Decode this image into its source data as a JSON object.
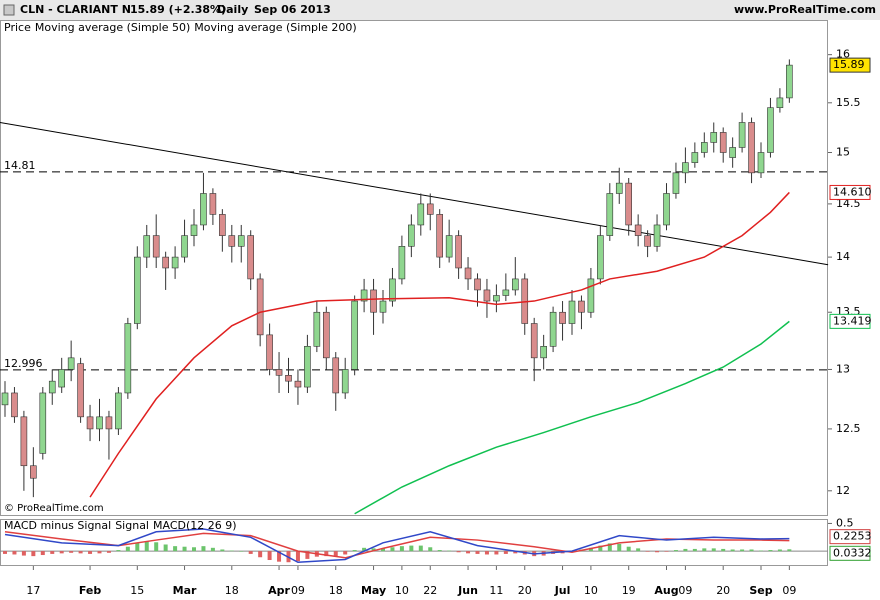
{
  "header": {
    "symbol": "CLN - CLARIANT N",
    "change": "15.89 (+2.38%)",
    "period": "Daily",
    "date": "Sep 06 2013",
    "site": "www.ProRealTime.com",
    "copyright": "© ProRealTime.com"
  },
  "chart_data": [
    {
      "type": "candlestick",
      "legend_label": "Price",
      "log": true,
      "ylim": [
        11.81,
        16.37
      ],
      "yticks": [
        12,
        12.5,
        13,
        13.5,
        14,
        14.5,
        15,
        15.5,
        16
      ],
      "up_color": "#8fd68f",
      "down_color": "#d98c8c",
      "categories": [
        null,
        null,
        null,
        "17",
        null,
        null,
        null,
        null,
        null,
        "Feb",
        null,
        null,
        null,
        null,
        "15",
        null,
        null,
        null,
        null,
        "Mar",
        null,
        null,
        null,
        null,
        "18",
        null,
        null,
        null,
        null,
        "Apr",
        null,
        "09",
        null,
        null,
        null,
        "18",
        null,
        null,
        null,
        "May",
        null,
        null,
        "10",
        null,
        null,
        "22",
        null,
        null,
        null,
        "Jun",
        null,
        null,
        "11",
        null,
        null,
        "20",
        null,
        null,
        null,
        "Jul",
        null,
        null,
        "10",
        null,
        null,
        null,
        "19",
        null,
        null,
        null,
        "Aug",
        null,
        "09",
        null,
        null,
        null,
        "20",
        null,
        null,
        null,
        "Sep",
        null,
        null,
        "09"
      ],
      "open": [
        12.7,
        12.8,
        12.6,
        12.2,
        12.3,
        12.8,
        12.85,
        13.0,
        13.05,
        12.6,
        12.5,
        12.6,
        12.5,
        12.8,
        13.4,
        14.0,
        14.2,
        14.0,
        13.9,
        14.0,
        14.2,
        14.3,
        14.6,
        14.4,
        14.2,
        14.1,
        14.2,
        13.8,
        13.3,
        13.0,
        12.95,
        12.9,
        12.85,
        13.2,
        13.5,
        13.1,
        12.8,
        13.0,
        13.6,
        13.7,
        13.5,
        13.6,
        13.8,
        14.1,
        14.3,
        14.5,
        14.4,
        14.0,
        14.2,
        13.9,
        13.8,
        13.7,
        13.6,
        13.65,
        13.7,
        13.8,
        13.4,
        13.1,
        13.2,
        13.5,
        13.4,
        13.6,
        13.5,
        13.8,
        14.2,
        14.6,
        14.7,
        14.3,
        14.2,
        14.1,
        14.3,
        14.6,
        14.8,
        14.9,
        15.0,
        15.1,
        15.2,
        14.95,
        15.05,
        15.3,
        14.8,
        15.0,
        15.45,
        15.55
      ],
      "high": [
        12.9,
        12.85,
        12.65,
        12.35,
        12.85,
        13.0,
        13.1,
        13.25,
        13.1,
        12.7,
        12.75,
        12.65,
        12.85,
        13.45,
        14.1,
        14.3,
        14.4,
        14.05,
        14.1,
        14.35,
        14.45,
        14.8,
        14.65,
        14.45,
        14.3,
        14.3,
        14.25,
        13.85,
        13.4,
        13.15,
        13.1,
        13.0,
        13.3,
        13.6,
        13.55,
        13.15,
        13.1,
        13.65,
        13.8,
        13.8,
        13.7,
        13.9,
        14.2,
        14.4,
        14.6,
        14.6,
        14.45,
        14.35,
        14.25,
        14.0,
        13.85,
        13.8,
        13.75,
        13.85,
        14.0,
        13.85,
        13.45,
        13.3,
        13.55,
        13.6,
        13.7,
        13.65,
        13.9,
        14.3,
        14.7,
        14.85,
        14.75,
        14.4,
        14.25,
        14.4,
        14.7,
        14.9,
        15.05,
        15.1,
        15.2,
        15.3,
        15.25,
        15.15,
        15.4,
        15.35,
        15.1,
        15.55,
        15.65,
        15.95
      ],
      "low": [
        12.6,
        12.55,
        12.0,
        11.95,
        12.25,
        12.7,
        12.8,
        12.9,
        12.55,
        12.4,
        12.4,
        12.25,
        12.45,
        12.75,
        13.35,
        13.9,
        13.9,
        13.7,
        13.8,
        13.95,
        14.1,
        14.25,
        14.3,
        14.05,
        13.95,
        13.95,
        13.7,
        13.2,
        12.95,
        12.8,
        12.8,
        12.7,
        12.8,
        13.15,
        13.0,
        12.65,
        12.75,
        12.95,
        13.5,
        13.3,
        13.4,
        13.55,
        13.75,
        14.0,
        14.2,
        14.25,
        13.9,
        13.95,
        13.8,
        13.7,
        13.55,
        13.45,
        13.5,
        13.6,
        13.65,
        13.3,
        12.9,
        13.0,
        13.15,
        13.25,
        13.3,
        13.35,
        13.45,
        13.75,
        14.15,
        14.5,
        14.2,
        14.1,
        14.0,
        14.05,
        14.25,
        14.55,
        14.7,
        14.85,
        14.95,
        15.0,
        14.9,
        14.85,
        15.0,
        14.7,
        14.75,
        14.95,
        15.4,
        15.5
      ],
      "close": [
        12.8,
        12.6,
        12.2,
        12.1,
        12.8,
        12.9,
        13.0,
        13.1,
        12.6,
        12.5,
        12.6,
        12.5,
        12.8,
        13.4,
        14.0,
        14.2,
        14.0,
        13.9,
        14.0,
        14.2,
        14.3,
        14.6,
        14.4,
        14.2,
        14.1,
        14.2,
        13.8,
        13.3,
        13.0,
        12.95,
        12.9,
        12.85,
        13.2,
        13.5,
        13.1,
        12.8,
        13.0,
        13.6,
        13.7,
        13.5,
        13.6,
        13.8,
        14.1,
        14.3,
        14.5,
        14.4,
        14.0,
        14.2,
        13.9,
        13.8,
        13.7,
        13.6,
        13.65,
        13.7,
        13.8,
        13.4,
        13.1,
        13.2,
        13.5,
        13.4,
        13.6,
        13.5,
        13.8,
        14.2,
        14.6,
        14.7,
        14.3,
        14.2,
        14.1,
        14.3,
        14.6,
        14.8,
        14.9,
        15.0,
        15.1,
        15.2,
        15.0,
        15.05,
        15.3,
        14.8,
        15.0,
        15.45,
        15.55,
        15.89
      ],
      "series": [
        {
          "name": "Moving average (Simple 50)",
          "color": "#e02020",
          "x": [
            9,
            12,
            16,
            20,
            24,
            27,
            33,
            40,
            47,
            52,
            56,
            61,
            64,
            69,
            74,
            78,
            81,
            83
          ],
          "values": [
            11.95,
            12.3,
            12.75,
            13.1,
            13.38,
            13.5,
            13.6,
            13.62,
            13.63,
            13.57,
            13.6,
            13.7,
            13.8,
            13.87,
            14.0,
            14.2,
            14.42,
            14.61
          ],
          "value_labels": [
            null,
            null,
            null,
            null,
            null,
            null,
            null,
            null,
            null,
            null,
            null,
            null,
            null,
            null,
            null,
            null,
            null,
            "14.610"
          ]
        },
        {
          "name": "Moving average (Simple 200)",
          "color": "#10c050",
          "x": [
            37,
            42,
            47,
            52,
            57,
            62,
            67,
            72,
            76,
            80,
            83
          ],
          "values": [
            11.82,
            12.03,
            12.2,
            12.35,
            12.47,
            12.6,
            12.72,
            12.88,
            13.02,
            13.22,
            13.419
          ]
        }
      ],
      "levels": [
        14.81,
        12.996
      ],
      "trendline": {
        "x": [
          -0.53,
          87.1
        ],
        "values": [
          15.3,
          13.93
        ]
      }
    },
    {
      "type": "macd",
      "ylim": [
        -0.25,
        0.58
      ],
      "yticks": [
        0.5
      ],
      "histogram": {
        "name": "MACD minus Signal",
        "up_color": "#6cc46c",
        "down_color": "#e06060",
        "values": [
          -0.05,
          -0.06,
          -0.08,
          -0.09,
          -0.07,
          -0.05,
          -0.04,
          -0.03,
          -0.04,
          -0.05,
          -0.04,
          -0.03,
          0.02,
          0.08,
          0.15,
          0.18,
          0.16,
          0.12,
          0.09,
          0.08,
          0.07,
          0.09,
          0.06,
          0.03,
          0.01,
          0.0,
          -0.05,
          -0.11,
          -0.16,
          -0.19,
          -0.2,
          -0.18,
          -0.14,
          -0.1,
          -0.09,
          -0.1,
          -0.06,
          0.02,
          0.06,
          0.05,
          0.05,
          0.07,
          0.09,
          0.1,
          0.1,
          0.07,
          0.02,
          0.01,
          -0.02,
          -0.04,
          -0.05,
          -0.06,
          -0.06,
          -0.05,
          -0.04,
          -0.06,
          -0.09,
          -0.08,
          -0.05,
          -0.04,
          0.01,
          0.03,
          0.06,
          0.1,
          0.14,
          0.13,
          0.08,
          0.05,
          -0.01,
          -0.02,
          -0.01,
          0.02,
          0.04,
          0.04,
          0.05,
          0.05,
          0.04,
          0.03,
          0.03,
          0.03,
          0.01,
          0.02,
          0.03,
          0.0332
        ]
      },
      "series": [
        {
          "name": "Signal",
          "color": "#e04040",
          "x": [
            0,
            6,
            12,
            16,
            21,
            26,
            31,
            36,
            40,
            45,
            50,
            56,
            60,
            65,
            70,
            75,
            80,
            83
          ],
          "values": [
            0.35,
            0.22,
            0.1,
            0.2,
            0.32,
            0.28,
            0.0,
            -0.12,
            0.05,
            0.25,
            0.2,
            0.08,
            -0.02,
            0.15,
            0.22,
            0.2,
            0.2,
            0.19
          ]
        },
        {
          "name": "MACD(12 26 9)",
          "color": "#3048c8",
          "x": [
            0,
            6,
            12,
            16,
            21,
            26,
            31,
            36,
            40,
            45,
            50,
            56,
            60,
            65,
            70,
            75,
            80,
            83
          ],
          "values": [
            0.3,
            0.15,
            0.1,
            0.35,
            0.4,
            0.25,
            -0.2,
            -0.15,
            0.15,
            0.35,
            0.1,
            -0.05,
            0.0,
            0.28,
            0.2,
            0.25,
            0.22,
            0.2253
          ]
        }
      ]
    }
  ]
}
